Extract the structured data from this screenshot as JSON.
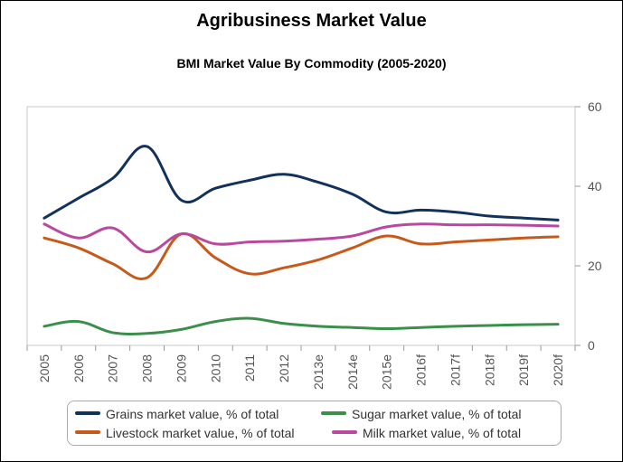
{
  "chart_data": {
    "type": "line",
    "title": "Agribusiness Market Value",
    "subtitle": "BMI Market Value By Commodity (2005-2020)",
    "xlabel": "",
    "ylabel": "",
    "categories": [
      "2005",
      "2006",
      "2007",
      "2008",
      "2009",
      "2010",
      "2011",
      "2012",
      "2013e",
      "2014e",
      "2015e",
      "2016f",
      "2017f",
      "2018f",
      "2019f",
      "2020f"
    ],
    "ylim": [
      0,
      60
    ],
    "yticks": [
      0,
      20,
      40,
      60
    ],
    "y_axis_side": "right",
    "legend_position": "bottom",
    "series": [
      {
        "name": "Grains market value, % of total",
        "color": "#13325b",
        "values": [
          32,
          37,
          42,
          50,
          36.5,
          39.5,
          41.5,
          43,
          41,
          38,
          33.5,
          34,
          33.5,
          32.5,
          32,
          31.5
        ]
      },
      {
        "name": "Sugar market value, % of total",
        "color": "#3a8f4a",
        "values": [
          4.8,
          6,
          3.2,
          3,
          4,
          6,
          6.8,
          5.5,
          4.8,
          4.5,
          4.2,
          4.5,
          4.8,
          5,
          5.2,
          5.3
        ]
      },
      {
        "name": "Livestock market value, % of total",
        "color": "#c55a1a",
        "values": [
          27,
          24.5,
          20.5,
          17,
          28,
          22,
          18,
          19.5,
          21.5,
          24.5,
          27.5,
          25.5,
          26,
          26.5,
          27,
          27.3
        ]
      },
      {
        "name": "Milk market value, % of total",
        "color": "#b8499e",
        "values": [
          30.5,
          27,
          29.5,
          23.5,
          28,
          25.5,
          26,
          26.2,
          26.7,
          27.5,
          29.8,
          30.5,
          30.3,
          30.3,
          30.2,
          30
        ]
      }
    ]
  }
}
